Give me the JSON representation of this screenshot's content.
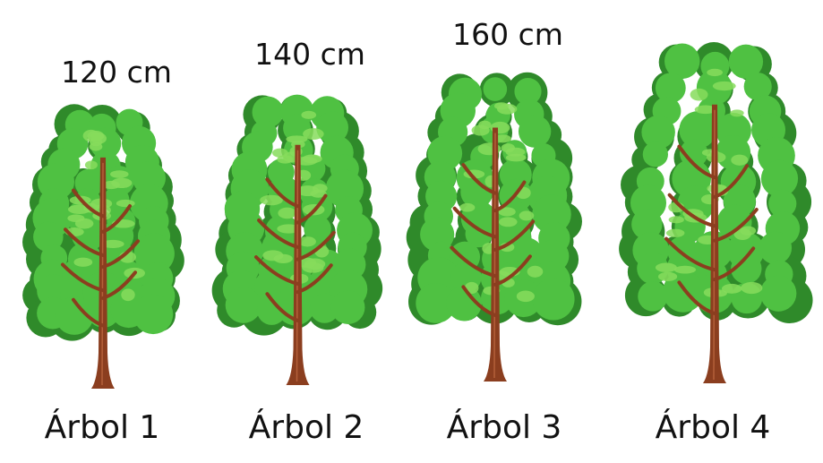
{
  "trees": [
    {
      "name": "Árbol 1",
      "height_label": "120 cm",
      "height_cm": 120
    },
    {
      "name": "Árbol 2",
      "height_label": "140 cm",
      "height_cm": 140
    },
    {
      "name": "Árbol 3",
      "height_label": "160 cm",
      "height_cm": 160
    },
    {
      "name": "Árbol 4",
      "height_label": "",
      "height_cm": null
    }
  ],
  "colors": {
    "foliage": "#4fc142",
    "foliage_light": "#86dc5c",
    "foliage_dark": "#2f8a2a",
    "trunk": "#8b3e1f",
    "trunk_light": "#b4603a",
    "text": "#111111"
  }
}
